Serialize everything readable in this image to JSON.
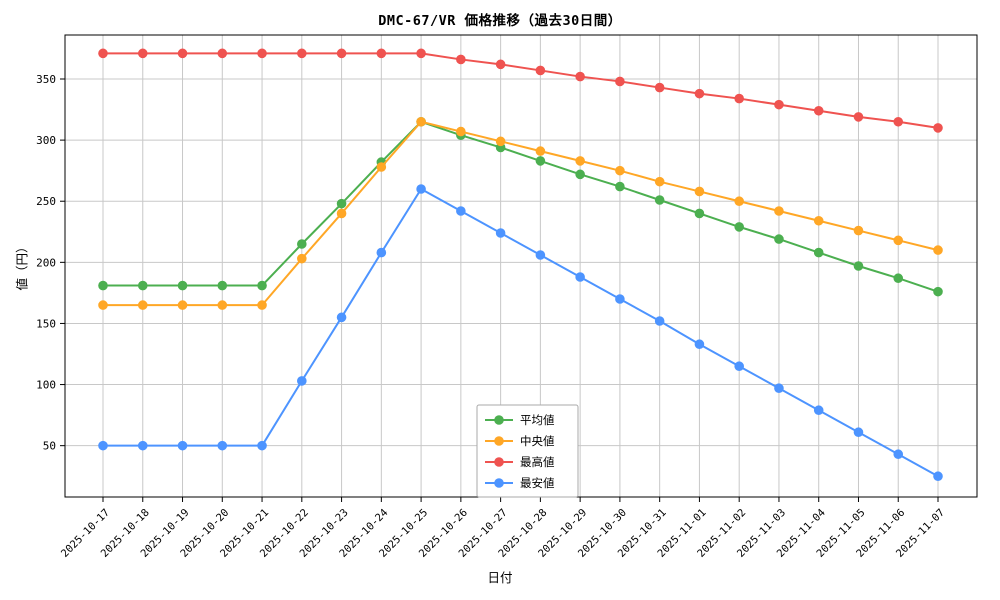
{
  "chart_data": {
    "type": "line",
    "title": "DMC-67/VR 価格推移（過去30日間）",
    "xlabel": "日付",
    "ylabel": "値（円）",
    "grid": true,
    "legend_position": "lower-center",
    "yticks": [
      50,
      100,
      150,
      200,
      250,
      300,
      350
    ],
    "ylim": [
      8,
      386
    ],
    "categories": [
      "2025-10-17",
      "2025-10-18",
      "2025-10-19",
      "2025-10-20",
      "2025-10-21",
      "2025-10-22",
      "2025-10-23",
      "2025-10-24",
      "2025-10-25",
      "2025-10-26",
      "2025-10-27",
      "2025-10-28",
      "2025-10-29",
      "2025-10-30",
      "2025-10-31",
      "2025-11-01",
      "2025-11-02",
      "2025-11-03",
      "2025-11-04",
      "2025-11-05",
      "2025-11-06",
      "2025-11-07"
    ],
    "series": [
      {
        "id": "average",
        "name": "平均値",
        "color": "#4caf50",
        "values": [
          181,
          181,
          181,
          181,
          181,
          215,
          248,
          282,
          315,
          304,
          294,
          283,
          272,
          262,
          251,
          240,
          229,
          219,
          208,
          197,
          187,
          176
        ]
      },
      {
        "id": "median",
        "name": "中央値",
        "color": "#ffa726",
        "values": [
          165,
          165,
          165,
          165,
          165,
          203,
          240,
          278,
          315,
          307,
          299,
          291,
          283,
          275,
          266,
          258,
          250,
          242,
          234,
          226,
          218,
          210
        ]
      },
      {
        "id": "max",
        "name": "最高値",
        "color": "#ef5350",
        "values": [
          371,
          371,
          371,
          371,
          371,
          371,
          371,
          371,
          371,
          366,
          362,
          357,
          352,
          348,
          343,
          338,
          334,
          329,
          324,
          319,
          315,
          310
        ]
      },
      {
        "id": "min",
        "name": "最安値",
        "color": "#4d94ff",
        "values": [
          50,
          50,
          50,
          50,
          50,
          103,
          155,
          208,
          260,
          242,
          224,
          206,
          188,
          170,
          152,
          133,
          115,
          97,
          79,
          61,
          43,
          25
        ]
      }
    ]
  }
}
